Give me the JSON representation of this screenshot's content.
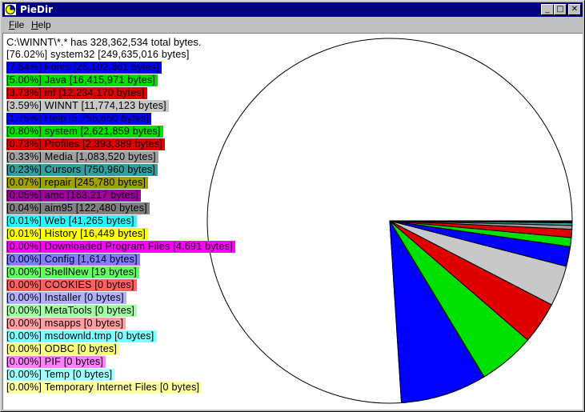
{
  "window": {
    "title": "PieDir",
    "buttons": {
      "minimize": "_",
      "maximize": "□",
      "close": "✕"
    },
    "icon": "piedir-app-icon"
  },
  "menu": {
    "file": {
      "accel": "F",
      "rest": "ile"
    },
    "help": {
      "accel": "H",
      "rest": "elp"
    }
  },
  "summary": "C:\\WINNT\\*.* has 328,362,534 total bytes.",
  "entries": [
    {
      "text": "[76.02%]  system32  [249,635,016 bytes]",
      "bg": "#ffffff",
      "fg": "#000000",
      "pct": 76.02
    },
    {
      "text": "[7.64%]  Fonts  [25,102,361 bytes]",
      "bg": "#0000ff",
      "fg": "#000000",
      "pct": 7.64
    },
    {
      "text": "[5.00%]  Java  [16,415,971 bytes]",
      "bg": "#00e000",
      "fg": "#000000",
      "pct": 5.0
    },
    {
      "text": "[3.73%]  inf  [12,234,170 bytes]",
      "bg": "#e00000",
      "fg": "#000000",
      "pct": 3.73
    },
    {
      "text": "[3.59%]  WINNT  [11,774,123 bytes]",
      "bg": "#c8c8c8",
      "fg": "#000000",
      "pct": 3.59
    },
    {
      "text": "[1.75%]  Help  [5,755,650 bytes]",
      "bg": "#0000ff",
      "fg": "#000000",
      "pct": 1.75
    },
    {
      "text": "[0.80%]  system  [2,621,859 bytes]",
      "bg": "#00e000",
      "fg": "#000000",
      "pct": 0.8
    },
    {
      "text": "[0.73%]  Profiles  [2,393,389 bytes]",
      "bg": "#e00000",
      "fg": "#000000",
      "pct": 0.73
    },
    {
      "text": "[0.33%]  Media  [1,083,520 bytes]",
      "bg": "#a0a0a0",
      "fg": "#000000",
      "pct": 0.33
    },
    {
      "text": "[0.23%]  Cursors  [750,960 bytes]",
      "bg": "#2f9fa0",
      "fg": "#000000",
      "pct": 0.23
    },
    {
      "text": "[0.07%]  repair  [245,780 bytes]",
      "bg": "#a0a000",
      "fg": "#000000",
      "pct": 0.07
    },
    {
      "text": "[0.05%]  amc  [163,217 bytes]",
      "bg": "#a000a0",
      "fg": "#000000",
      "pct": 0.05
    },
    {
      "text": "[0.04%]  aim95  [122,480 bytes]",
      "bg": "#808080",
      "fg": "#000000",
      "pct": 0.04
    },
    {
      "text": "[0.01%]  Web  [41,265 bytes]",
      "bg": "#20ffff",
      "fg": "#000000",
      "pct": 0.01
    },
    {
      "text": "[0.01%]  History  [16,449 bytes]",
      "bg": "#ffff00",
      "fg": "#000000",
      "pct": 0.01
    },
    {
      "text": "[0.00%]  Downloaded Program Files  [4,691 bytes]",
      "bg": "#ff00ff",
      "fg": "#000000",
      "pct": 0
    },
    {
      "text": "[0.00%]  Config  [1,614 bytes]",
      "bg": "#7f7fff",
      "fg": "#000000",
      "pct": 0
    },
    {
      "text": "[0.00%]  ShellNew  [19 bytes]",
      "bg": "#60ff60",
      "fg": "#000000",
      "pct": 0
    },
    {
      "text": "[0.00%]  COOKIES  [0 bytes]",
      "bg": "#ff6060",
      "fg": "#000000",
      "pct": 0
    },
    {
      "text": "[0.00%]  Installer  [0 bytes]",
      "bg": "#b0b0ff",
      "fg": "#000000",
      "pct": 0
    },
    {
      "text": "[0.00%]  MetaTools  [0 bytes]",
      "bg": "#a0ffa0",
      "fg": "#000000",
      "pct": 0
    },
    {
      "text": "[0.00%]  msapps  [0 bytes]",
      "bg": "#ffa0a0",
      "fg": "#000000",
      "pct": 0
    },
    {
      "text": "[0.00%]  msdownld.tmp  [0 bytes]",
      "bg": "#7fffff",
      "fg": "#000000",
      "pct": 0
    },
    {
      "text": "[0.00%]  ODBC  [0 bytes]",
      "bg": "#ffff7f",
      "fg": "#000000",
      "pct": 0
    },
    {
      "text": "[0.00%]  PIF  [0 bytes]",
      "bg": "#ff7fff",
      "fg": "#000000",
      "pct": 0
    },
    {
      "text": "[0.00%]  Temp  [0 bytes]",
      "bg": "#a0ffff",
      "fg": "#000000",
      "pct": 0
    },
    {
      "text": "[0.00%]  Temporary Internet Files  [0 bytes]",
      "bg": "#ffffa0",
      "fg": "#000000",
      "pct": 0
    }
  ],
  "chart_data": {
    "type": "pie",
    "start": "3 o'clock, counter-clockwise",
    "slices": [
      {
        "label": "system32",
        "value": 76.02,
        "color": "#ffffff"
      },
      {
        "label": "Fonts",
        "value": 7.64,
        "color": "#0000ff"
      },
      {
        "label": "Java",
        "value": 5.0,
        "color": "#00e000"
      },
      {
        "label": "inf",
        "value": 3.73,
        "color": "#e00000"
      },
      {
        "label": "WINNT",
        "value": 3.59,
        "color": "#c8c8c8"
      },
      {
        "label": "Help",
        "value": 1.75,
        "color": "#0000ff"
      },
      {
        "label": "system",
        "value": 0.8,
        "color": "#00e000"
      },
      {
        "label": "Profiles",
        "value": 0.73,
        "color": "#e00000"
      },
      {
        "label": "Media",
        "value": 0.33,
        "color": "#a0a0a0"
      },
      {
        "label": "Cursors",
        "value": 0.23,
        "color": "#2f9fa0"
      },
      {
        "label": "repair",
        "value": 0.07,
        "color": "#a0a000"
      },
      {
        "label": "amc",
        "value": 0.05,
        "color": "#a000a0"
      },
      {
        "label": "aim95",
        "value": 0.04,
        "color": "#808080"
      },
      {
        "label": "Web",
        "value": 0.01,
        "color": "#20ffff"
      },
      {
        "label": "History",
        "value": 0.01,
        "color": "#ffff00"
      }
    ]
  }
}
